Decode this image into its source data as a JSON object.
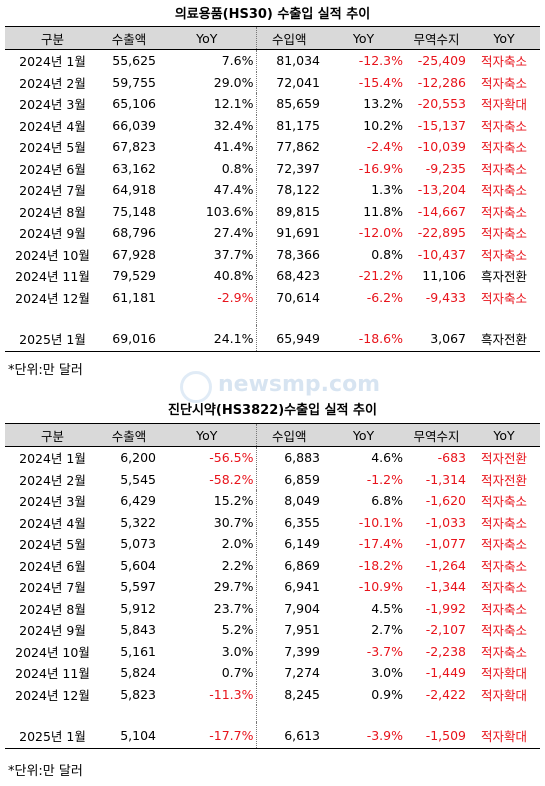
{
  "t1": {
    "title": "의료용품(HS30) 수출입 실적 추이",
    "headers": [
      "구분",
      "수출액",
      "YoY",
      "수입액",
      "YoY",
      "무역수지",
      "YoY"
    ],
    "rows": [
      [
        "2024년 1월",
        "55,625",
        "7.6%",
        "81,034",
        "-12.3%",
        "-25,409",
        "적자축소"
      ],
      [
        "2024년 2월",
        "59,755",
        "29.0%",
        "72,041",
        "-15.4%",
        "-12,286",
        "적자축소"
      ],
      [
        "2024년 3월",
        "65,106",
        "12.1%",
        "85,659",
        "13.2%",
        "-20,553",
        "적자확대"
      ],
      [
        "2024년 4월",
        "66,039",
        "32.4%",
        "81,175",
        "10.2%",
        "-15,137",
        "적자축소"
      ],
      [
        "2024년 5월",
        "67,823",
        "41.4%",
        "77,862",
        "-2.4%",
        "-10,039",
        "적자축소"
      ],
      [
        "2024년 6월",
        "63,162",
        "0.8%",
        "72,397",
        "-16.9%",
        "-9,235",
        "적자축소"
      ],
      [
        "2024년 7월",
        "64,918",
        "47.4%",
        "78,122",
        "1.3%",
        "-13,204",
        "적자축소"
      ],
      [
        "2024년 8월",
        "75,148",
        "103.6%",
        "89,815",
        "11.8%",
        "-14,667",
        "적자축소"
      ],
      [
        "2024년 9월",
        "68,796",
        "27.4%",
        "91,691",
        "-12.0%",
        "-22,895",
        "적자축소"
      ],
      [
        "2024년 10월",
        "67,928",
        "37.7%",
        "78,366",
        "0.8%",
        "-10,437",
        "적자축소"
      ],
      [
        "2024년 11월",
        "79,529",
        "40.8%",
        "68,423",
        "-21.2%",
        "11,106",
        "흑자전환"
      ],
      [
        "2024년 12월",
        "61,181",
        "-2.9%",
        "70,614",
        "-6.2%",
        "-9,433",
        "적자축소"
      ],
      [
        "2025년 1월",
        "69,016",
        "24.1%",
        "65,949",
        "-18.6%",
        "3,067",
        "흑자전환"
      ]
    ],
    "note": "*단위:만 달러"
  },
  "t2": {
    "title": "진단시약(HS3822)수출입 실적 추이",
    "headers": [
      "구분",
      "수출액",
      "YoY",
      "수입액",
      "YoY",
      "무역수지",
      "YoY"
    ],
    "rows": [
      [
        "2024년 1월",
        "6,200",
        "-56.5%",
        "6,883",
        "4.6%",
        "-683",
        "적자전환"
      ],
      [
        "2024년 2월",
        "5,545",
        "-58.2%",
        "6,859",
        "-1.2%",
        "-1,314",
        "적자전환"
      ],
      [
        "2024년 3월",
        "6,429",
        "15.2%",
        "8,049",
        "6.8%",
        "-1,620",
        "적자축소"
      ],
      [
        "2024년 4월",
        "5,322",
        "30.7%",
        "6,355",
        "-10.1%",
        "-1,033",
        "적자축소"
      ],
      [
        "2024년 5월",
        "5,073",
        "2.0%",
        "6,149",
        "-17.4%",
        "-1,077",
        "적자축소"
      ],
      [
        "2024년 6월",
        "5,604",
        "2.2%",
        "6,869",
        "-18.2%",
        "-1,264",
        "적자축소"
      ],
      [
        "2024년 7월",
        "5,597",
        "29.7%",
        "6,941",
        "-10.9%",
        "-1,344",
        "적자축소"
      ],
      [
        "2024년 8월",
        "5,912",
        "23.7%",
        "7,904",
        "4.5%",
        "-1,992",
        "적자축소"
      ],
      [
        "2024년 9월",
        "5,843",
        "5.2%",
        "7,951",
        "2.7%",
        "-2,107",
        "적자축소"
      ],
      [
        "2024년 10월",
        "5,161",
        "3.0%",
        "7,399",
        "-3.7%",
        "-2,238",
        "적자축소"
      ],
      [
        "2024년 11월",
        "5,824",
        "0.7%",
        "7,274",
        "3.0%",
        "-1,449",
        "적자확대"
      ],
      [
        "2024년 12월",
        "5,823",
        "-11.3%",
        "8,245",
        "0.9%",
        "-2,422",
        "적자확대"
      ],
      [
        "2025년 1월",
        "5,104",
        "-17.7%",
        "6,613",
        "-3.9%",
        "-1,509",
        "적자확대"
      ]
    ],
    "note": "*단위:만 달러"
  },
  "watermark": "newsmp.com",
  "colors": {
    "negative": "#e8141c",
    "header_bg": "#d9d9d9"
  }
}
